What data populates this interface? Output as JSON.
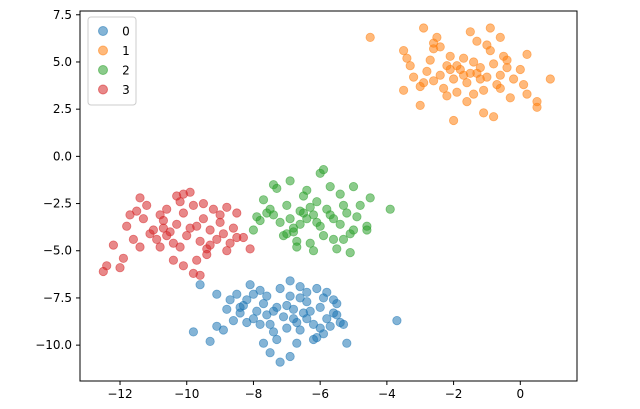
{
  "chart_data": {
    "type": "scatter",
    "title": "",
    "xlabel": "",
    "ylabel": "",
    "xlim": [
      -13.2,
      1.7
    ],
    "ylim": [
      -11.9,
      7.7
    ],
    "xticks": [
      -12,
      -10,
      -8,
      -6,
      -4,
      -2,
      0
    ],
    "yticks": [
      -10.0,
      -7.5,
      -5.0,
      -2.5,
      0.0,
      2.5,
      5.0,
      7.5
    ],
    "xtick_labels": [
      "−12",
      "−10",
      "−8",
      "−6",
      "−4",
      "−2",
      "0"
    ],
    "ytick_labels": [
      "−10.0",
      "−7.5",
      "−5.0",
      "−2.5",
      "0.0",
      "2.5",
      "5.0",
      "7.5"
    ],
    "grid": false,
    "legend": "top-left",
    "marker_alpha": 0.55,
    "series": [
      {
        "name": "0",
        "color": "#1f77b4",
        "points": [
          [
            -9.8,
            -9.3
          ],
          [
            -9.3,
            -9.8
          ],
          [
            -9.1,
            -9.0
          ],
          [
            -8.9,
            -9.2
          ],
          [
            -8.6,
            -8.7
          ],
          [
            -8.8,
            -8.1
          ],
          [
            -8.4,
            -8.3
          ],
          [
            -8.3,
            -7.9
          ],
          [
            -8.2,
            -7.6
          ],
          [
            -8.0,
            -8.6
          ],
          [
            -7.9,
            -8.2
          ],
          [
            -7.7,
            -7.8
          ],
          [
            -7.6,
            -8.4
          ],
          [
            -7.5,
            -8.9
          ],
          [
            -7.4,
            -9.3
          ],
          [
            -7.3,
            -9.7
          ],
          [
            -7.1,
            -8.5
          ],
          [
            -7.0,
            -7.9
          ],
          [
            -6.9,
            -7.4
          ],
          [
            -6.8,
            -8.1
          ],
          [
            -6.7,
            -8.8
          ],
          [
            -6.6,
            -9.2
          ],
          [
            -6.5,
            -8.3
          ],
          [
            -6.4,
            -7.7
          ],
          [
            -6.3,
            -8.2
          ],
          [
            -6.2,
            -8.9
          ],
          [
            -6.1,
            -9.6
          ],
          [
            -6.0,
            -8.0
          ],
          [
            -5.9,
            -7.5
          ],
          [
            -5.8,
            -8.6
          ],
          [
            -5.7,
            -9.0
          ],
          [
            -5.6,
            -8.3
          ],
          [
            -5.5,
            -7.8
          ],
          [
            -5.4,
            -8.8
          ],
          [
            -5.2,
            -9.9
          ],
          [
            -7.2,
            -7.0
          ],
          [
            -6.9,
            -6.6
          ],
          [
            -6.6,
            -6.9
          ],
          [
            -6.4,
            -7.2
          ],
          [
            -7.8,
            -7.1
          ],
          [
            -8.1,
            -6.8
          ],
          [
            -8.5,
            -7.3
          ],
          [
            -9.1,
            -7.3
          ],
          [
            -9.6,
            -6.8
          ],
          [
            -7.5,
            -10.4
          ],
          [
            -6.9,
            -10.6
          ],
          [
            -7.2,
            -10.9
          ],
          [
            -6.7,
            -9.9
          ],
          [
            -6.2,
            -9.7
          ],
          [
            -5.9,
            -9.4
          ],
          [
            -3.7,
            -8.7
          ],
          [
            -7.7,
            -9.9
          ],
          [
            -7.0,
            -9.1
          ],
          [
            -6.8,
            -8.6
          ],
          [
            -7.3,
            -8.0
          ],
          [
            -7.6,
            -7.4
          ],
          [
            -6.1,
            -7.0
          ],
          [
            -5.8,
            -7.2
          ],
          [
            -5.6,
            -7.6
          ],
          [
            -6.6,
            -7.5
          ],
          [
            -8.4,
            -8.0
          ],
          [
            -8.7,
            -7.6
          ],
          [
            -8.0,
            -7.3
          ],
          [
            -7.8,
            -8.9
          ],
          [
            -8.2,
            -8.8
          ],
          [
            -5.5,
            -8.4
          ],
          [
            -5.3,
            -8.9
          ],
          [
            -6.4,
            -8.6
          ],
          [
            -6.0,
            -9.1
          ],
          [
            -7.4,
            -8.2
          ]
        ]
      },
      {
        "name": "1",
        "color": "#ff7f0e",
        "points": [
          [
            -4.5,
            6.3
          ],
          [
            -3.5,
            5.6
          ],
          [
            -3.4,
            5.2
          ],
          [
            -3.3,
            4.8
          ],
          [
            -3.2,
            4.2
          ],
          [
            -3.0,
            3.7
          ],
          [
            -2.9,
            3.9
          ],
          [
            -2.8,
            4.5
          ],
          [
            -2.7,
            5.1
          ],
          [
            -2.6,
            5.7
          ],
          [
            -2.5,
            6.3
          ],
          [
            -2.4,
            4.3
          ],
          [
            -2.3,
            3.6
          ],
          [
            -2.2,
            4.8
          ],
          [
            -2.1,
            5.3
          ],
          [
            -2.0,
            4.1
          ],
          [
            -1.9,
            3.4
          ],
          [
            -1.8,
            4.6
          ],
          [
            -1.7,
            5.2
          ],
          [
            -1.6,
            3.9
          ],
          [
            -1.5,
            4.4
          ],
          [
            -1.4,
            5.0
          ],
          [
            -1.3,
            6.1
          ],
          [
            -1.2,
            4.7
          ],
          [
            -1.1,
            3.5
          ],
          [
            -1.0,
            4.2
          ],
          [
            -0.9,
            5.6
          ],
          [
            -0.8,
            4.9
          ],
          [
            -0.7,
            3.8
          ],
          [
            -0.6,
            4.3
          ],
          [
            -0.5,
            5.3
          ],
          [
            -0.4,
            4.7
          ],
          [
            -0.3,
            3.1
          ],
          [
            -0.2,
            4.1
          ],
          [
            0.0,
            4.6
          ],
          [
            0.2,
            3.3
          ],
          [
            0.5,
            2.9
          ],
          [
            0.9,
            4.1
          ],
          [
            -2.9,
            6.8
          ],
          [
            -2.6,
            6.0
          ],
          [
            -1.5,
            6.6
          ],
          [
            -0.9,
            6.8
          ],
          [
            -0.6,
            6.3
          ],
          [
            0.2,
            5.4
          ],
          [
            -3.0,
            2.7
          ],
          [
            -2.0,
            1.9
          ],
          [
            -1.1,
            2.3
          ],
          [
            -0.8,
            2.1
          ],
          [
            -1.6,
            2.9
          ],
          [
            -2.2,
            3.2
          ],
          [
            0.5,
            2.6
          ],
          [
            -1.2,
            4.1
          ],
          [
            -1.9,
            4.8
          ],
          [
            -2.4,
            5.8
          ],
          [
            -1.0,
            5.9
          ],
          [
            -0.4,
            5.1
          ],
          [
            -1.4,
            3.3
          ],
          [
            -0.6,
            3.6
          ],
          [
            -2.6,
            4.0
          ],
          [
            -3.5,
            3.5
          ],
          [
            0.1,
            3.8
          ],
          [
            -1.7,
            4.3
          ],
          [
            -1.3,
            4.4
          ],
          [
            -2.1,
            4.6
          ]
        ]
      },
      {
        "name": "2",
        "color": "#2ca02c",
        "points": [
          [
            -8.0,
            -3.9
          ],
          [
            -7.8,
            -3.4
          ],
          [
            -7.6,
            -3.0
          ],
          [
            -7.4,
            -1.5
          ],
          [
            -7.2,
            -3.5
          ],
          [
            -7.1,
            -4.2
          ],
          [
            -7.0,
            -2.6
          ],
          [
            -6.9,
            -1.3
          ],
          [
            -6.8,
            -3.8
          ],
          [
            -6.7,
            -4.5
          ],
          [
            -6.6,
            -2.9
          ],
          [
            -6.5,
            -2.1
          ],
          [
            -6.4,
            -3.3
          ],
          [
            -6.3,
            -4.6
          ],
          [
            -6.2,
            -3.1
          ],
          [
            -6.1,
            -2.4
          ],
          [
            -6.0,
            -3.7
          ],
          [
            -5.9,
            -4.2
          ],
          [
            -5.8,
            -2.8
          ],
          [
            -5.7,
            -1.6
          ],
          [
            -5.6,
            -3.3
          ],
          [
            -5.5,
            -4.9
          ],
          [
            -5.4,
            -3.6
          ],
          [
            -5.3,
            -2.6
          ],
          [
            -5.2,
            -3.0
          ],
          [
            -5.1,
            -4.1
          ],
          [
            -5.0,
            -3.9
          ],
          [
            -4.8,
            -2.6
          ],
          [
            -4.6,
            -3.7
          ],
          [
            -4.5,
            -2.2
          ],
          [
            -3.9,
            -2.8
          ],
          [
            -5.9,
            -0.7
          ],
          [
            -6.0,
            -0.9
          ],
          [
            -6.4,
            -1.8
          ],
          [
            -7.3,
            -1.7
          ],
          [
            -7.7,
            -2.3
          ],
          [
            -6.8,
            -4.0
          ],
          [
            -6.9,
            -3.3
          ],
          [
            -5.4,
            -2.0
          ],
          [
            -5.0,
            -1.6
          ],
          [
            -4.9,
            -3.2
          ],
          [
            -5.6,
            -4.4
          ],
          [
            -6.2,
            -5.0
          ],
          [
            -6.7,
            -4.8
          ],
          [
            -7.0,
            -4.1
          ],
          [
            -7.4,
            -3.1
          ],
          [
            -6.1,
            -3.5
          ],
          [
            -5.7,
            -3.1
          ],
          [
            -6.3,
            -2.7
          ],
          [
            -6.6,
            -3.6
          ],
          [
            -5.1,
            -5.1
          ],
          [
            -4.6,
            -3.9
          ],
          [
            -5.3,
            -4.4
          ],
          [
            -7.9,
            -3.2
          ],
          [
            -7.5,
            -2.8
          ],
          [
            -6.5,
            -3.0
          ]
        ]
      },
      {
        "name": "3",
        "color": "#d62728",
        "points": [
          [
            -12.5,
            -6.1
          ],
          [
            -12.4,
            -5.8
          ],
          [
            -12.2,
            -4.7
          ],
          [
            -12.0,
            -5.9
          ],
          [
            -11.9,
            -5.4
          ],
          [
            -11.8,
            -3.7
          ],
          [
            -11.7,
            -3.1
          ],
          [
            -11.6,
            -4.4
          ],
          [
            -11.5,
            -2.9
          ],
          [
            -11.4,
            -4.8
          ],
          [
            -11.3,
            -3.3
          ],
          [
            -11.2,
            -2.6
          ],
          [
            -11.0,
            -3.9
          ],
          [
            -10.9,
            -4.4
          ],
          [
            -10.8,
            -4.8
          ],
          [
            -10.7,
            -3.4
          ],
          [
            -10.6,
            -2.8
          ],
          [
            -10.5,
            -4.0
          ],
          [
            -10.4,
            -4.6
          ],
          [
            -10.3,
            -3.6
          ],
          [
            -10.2,
            -2.4
          ],
          [
            -10.1,
            -3.0
          ],
          [
            -10.0,
            -4.2
          ],
          [
            -9.9,
            -3.8
          ],
          [
            -9.8,
            -2.6
          ],
          [
            -9.7,
            -5.5
          ],
          [
            -9.6,
            -4.5
          ],
          [
            -9.5,
            -3.3
          ],
          [
            -9.4,
            -4.9
          ],
          [
            -9.3,
            -3.9
          ],
          [
            -9.2,
            -2.8
          ],
          [
            -9.1,
            -4.4
          ],
          [
            -9.0,
            -3.5
          ],
          [
            -8.9,
            -4.1
          ],
          [
            -8.8,
            -2.7
          ],
          [
            -8.7,
            -4.6
          ],
          [
            -8.6,
            -3.8
          ],
          [
            -8.5,
            -3.0
          ],
          [
            -8.3,
            -4.3
          ],
          [
            -8.1,
            -4.9
          ],
          [
            -10.1,
            -2.0
          ],
          [
            -9.9,
            -1.9
          ],
          [
            -10.3,
            -2.1
          ],
          [
            -11.4,
            -2.2
          ],
          [
            -10.1,
            -5.8
          ],
          [
            -9.8,
            -6.2
          ],
          [
            -9.6,
            -6.3
          ],
          [
            -10.4,
            -5.5
          ],
          [
            -9.4,
            -5.2
          ],
          [
            -10.7,
            -3.8
          ],
          [
            -11.1,
            -4.1
          ],
          [
            -8.5,
            -4.3
          ],
          [
            -9.0,
            -3.1
          ],
          [
            -10.2,
            -4.8
          ],
          [
            -10.8,
            -3.1
          ],
          [
            -9.5,
            -2.5
          ],
          [
            -8.8,
            -5.0
          ],
          [
            -9.3,
            -4.7
          ],
          [
            -10.6,
            -4.2
          ],
          [
            -9.7,
            -3.7
          ]
        ]
      }
    ]
  }
}
